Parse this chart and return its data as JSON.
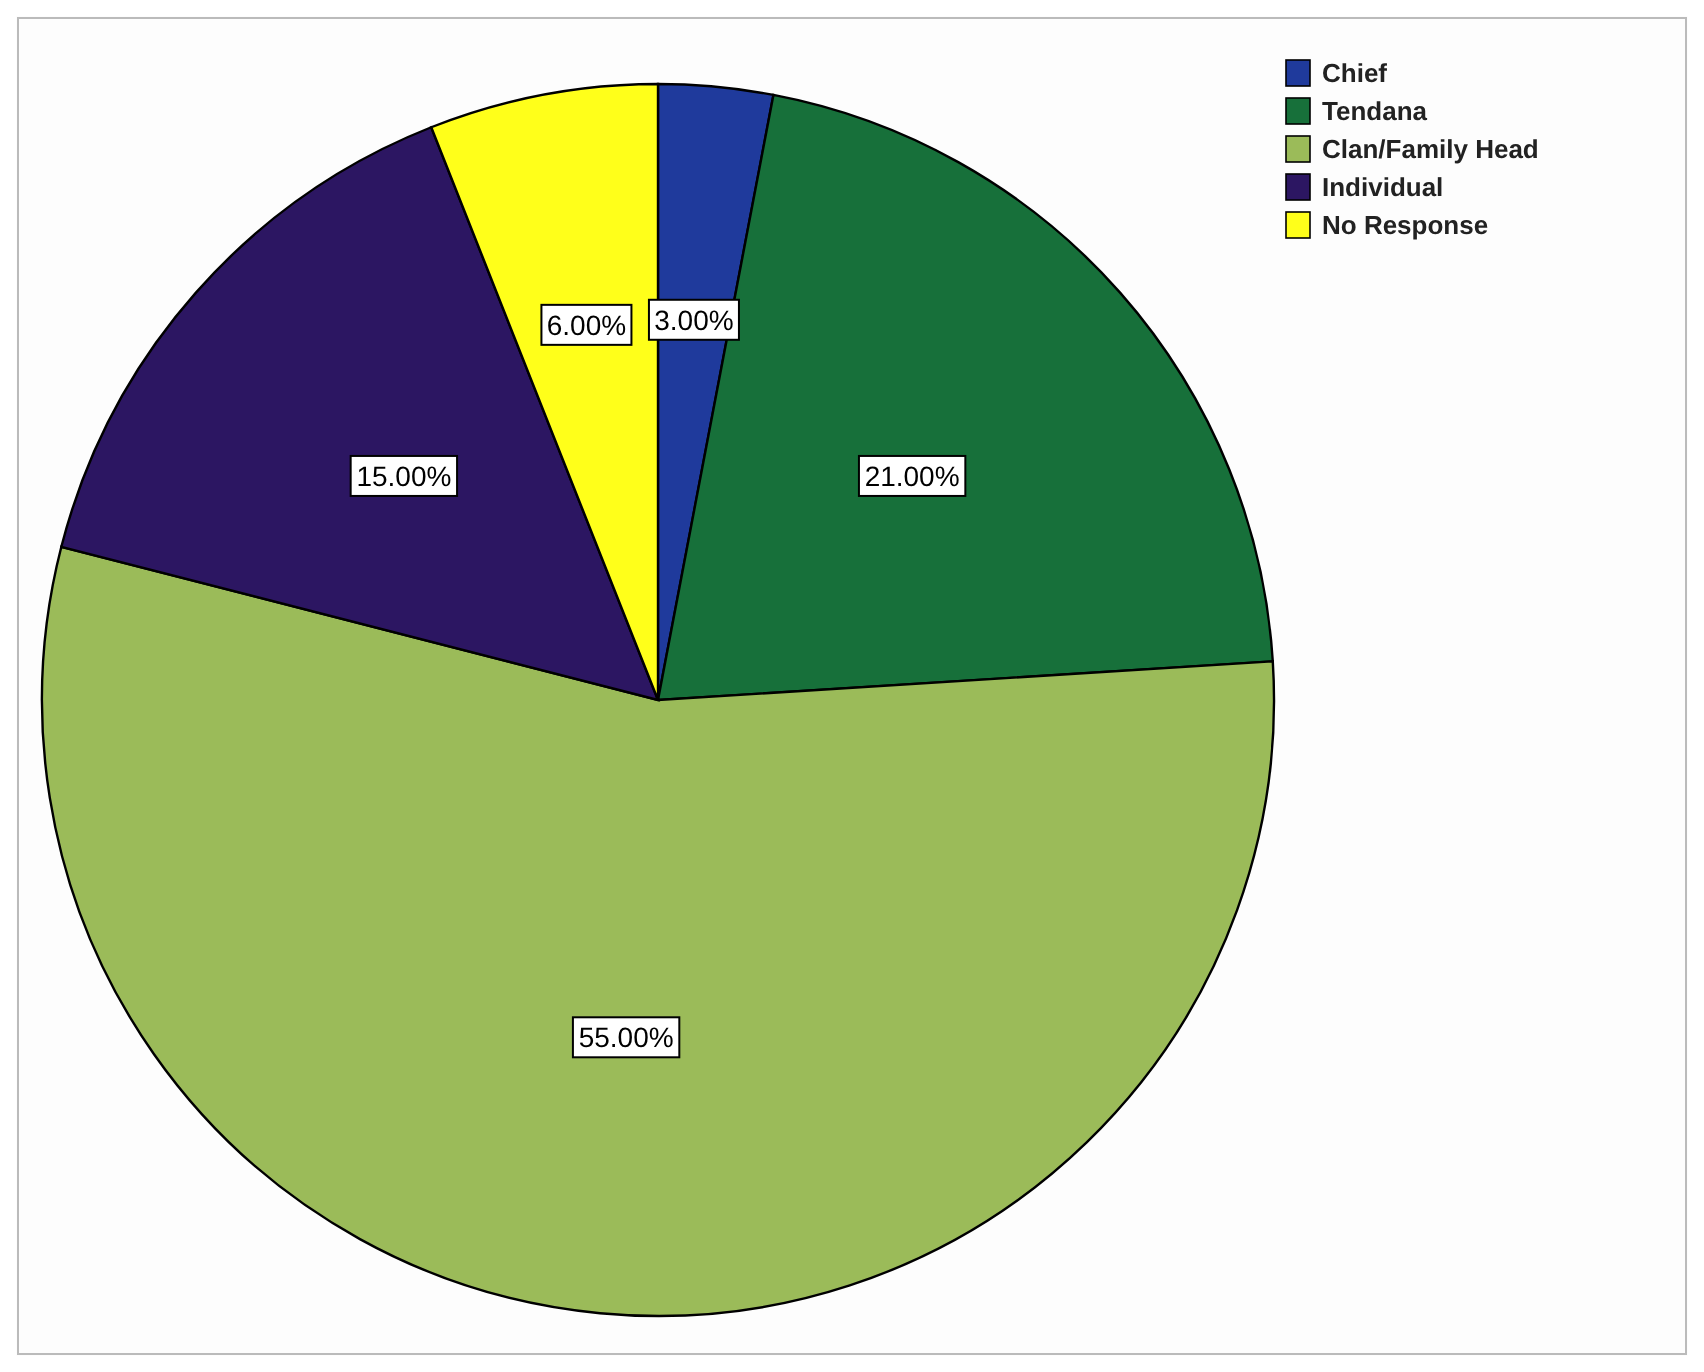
{
  "chart_data": {
    "type": "pie",
    "categories": [
      "Chief",
      "Tendana",
      "Clan/Family Head",
      "Individual",
      "No Response"
    ],
    "values": [
      3,
      21,
      55,
      15,
      6
    ],
    "colors": [
      "#1f3a9c",
      "#17703a",
      "#9bbb59",
      "#2c1662",
      "#ffff1a"
    ],
    "value_labels": [
      "3.00%",
      "21.00%",
      "55.00%",
      "15.00%",
      "6.00%"
    ],
    "legend": "top right"
  }
}
